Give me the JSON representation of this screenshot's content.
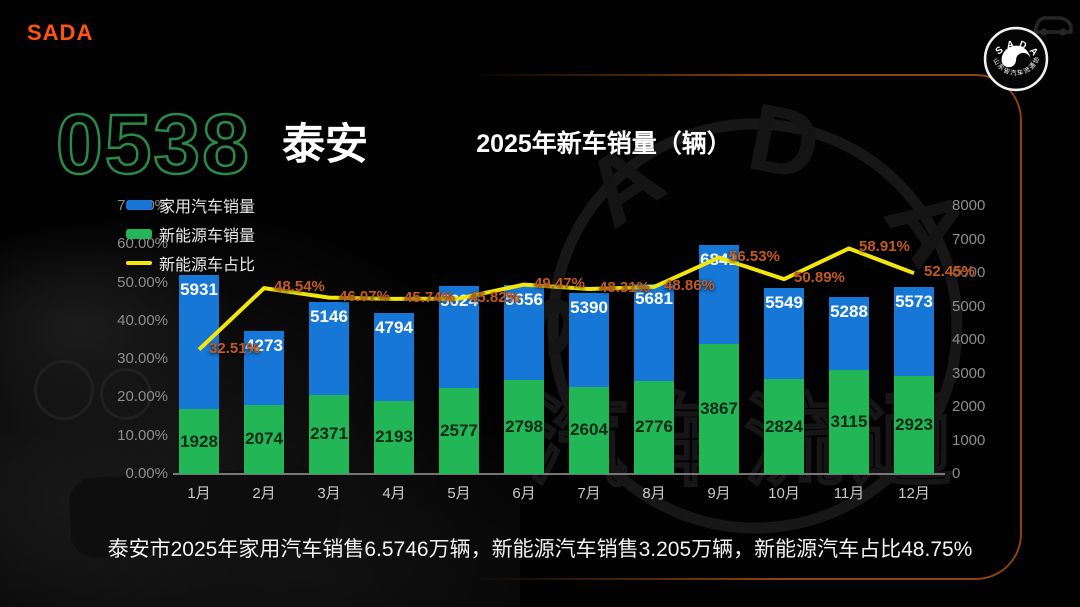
{
  "brand": {
    "logo_text": "SADA",
    "badge": {
      "top_text": "SADA",
      "bottom_text": "山东省汽车流通协会"
    }
  },
  "header": {
    "area_code": "0538",
    "city": "泰安"
  },
  "watermark": {
    "ring_text": "S A D A",
    "center_text": "汽车流通"
  },
  "chart_data": {
    "type": "bar+line",
    "title": "2025年新车销量（辆）",
    "categories": [
      "1月",
      "2月",
      "3月",
      "4月",
      "5月",
      "6月",
      "7月",
      "8月",
      "9月",
      "10月",
      "11月",
      "12月"
    ],
    "series": [
      {
        "name": "家用汽车销量",
        "type": "bar",
        "color": "#1677d6",
        "values": [
          5931,
          4273,
          5146,
          4794,
          5624,
          5656,
          5390,
          5681,
          6841,
          5549,
          5288,
          5573
        ]
      },
      {
        "name": "新能源车销量",
        "type": "bar",
        "color": "#23b657",
        "values": [
          1928,
          2074,
          2371,
          2193,
          2577,
          2798,
          2604,
          2776,
          3867,
          2824,
          3115,
          2923
        ]
      },
      {
        "name": "新能源车占比",
        "type": "line",
        "color": "#f4e60b",
        "label_color": "#c65a1e",
        "values": [
          32.51,
          48.54,
          46.07,
          45.74,
          45.82,
          49.47,
          48.31,
          48.86,
          56.53,
          50.89,
          58.91,
          52.45
        ],
        "labels": [
          "32.51%",
          "48.54%",
          "46.07%",
          "45.74%",
          "45.82%",
          "49.47%",
          "48.31%",
          "48.86%",
          "56.53%",
          "50.89%",
          "58.91%",
          "52.45%"
        ]
      }
    ],
    "left_axis": {
      "unit": "%",
      "min": 0,
      "max": 70,
      "ticks": [
        "70.00%",
        "60.00%",
        "50.00%",
        "40.00%",
        "30.00%",
        "20.00%",
        "10.00%",
        "0.00%"
      ]
    },
    "right_axis": {
      "min": 0,
      "max": 8000,
      "ticks": [
        8000,
        7000,
        6000,
        5000,
        4000,
        3000,
        2000,
        1000,
        0
      ]
    },
    "grid": false,
    "legend_position": "top-left"
  },
  "footer": {
    "summary": "泰安市2025年家用汽车销售6.5746万辆，新能源汽车销售3.205万辆，新能源汽车占比48.75%"
  }
}
